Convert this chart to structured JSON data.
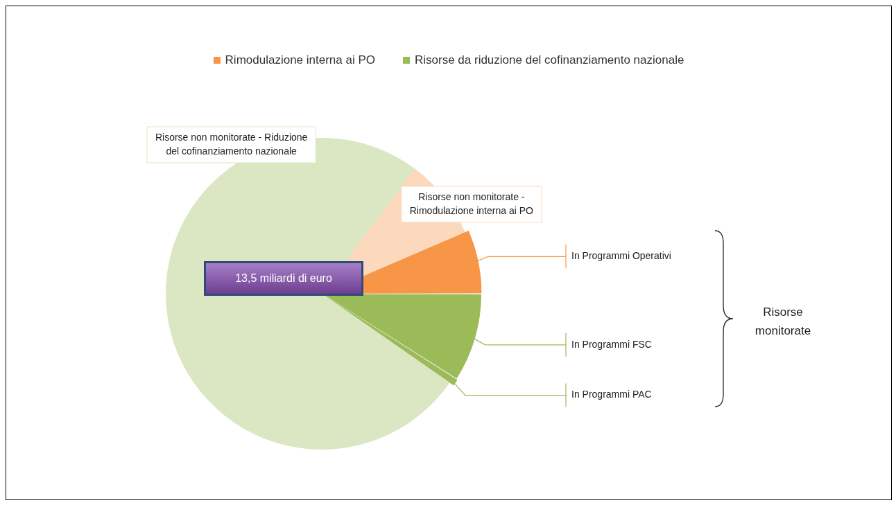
{
  "chart_data": {
    "type": "pie",
    "categories": [
      "In Programmi FSC",
      "In Programmi PAC",
      "Risorse non monitorate - Riduzione del cofinanziamento nazionale",
      "Risorse non monitorate - Rimodulazione interna ai PO",
      "In Programmi Operativi"
    ],
    "values": [
      9,
      0.7,
      75.5,
      8.3,
      6.5
    ],
    "colors": [
      "#9bbb59",
      "#9bbb59",
      "#dbe7c2",
      "#fcd9bd",
      "#f79646"
    ],
    "annotations": [
      "Rimodulazione interna ai PO",
      "Risorse da riduzione del cofinanziamento nazionale",
      "13,5 miliardi di euro",
      "Risorse monitorate"
    ]
  }
}
